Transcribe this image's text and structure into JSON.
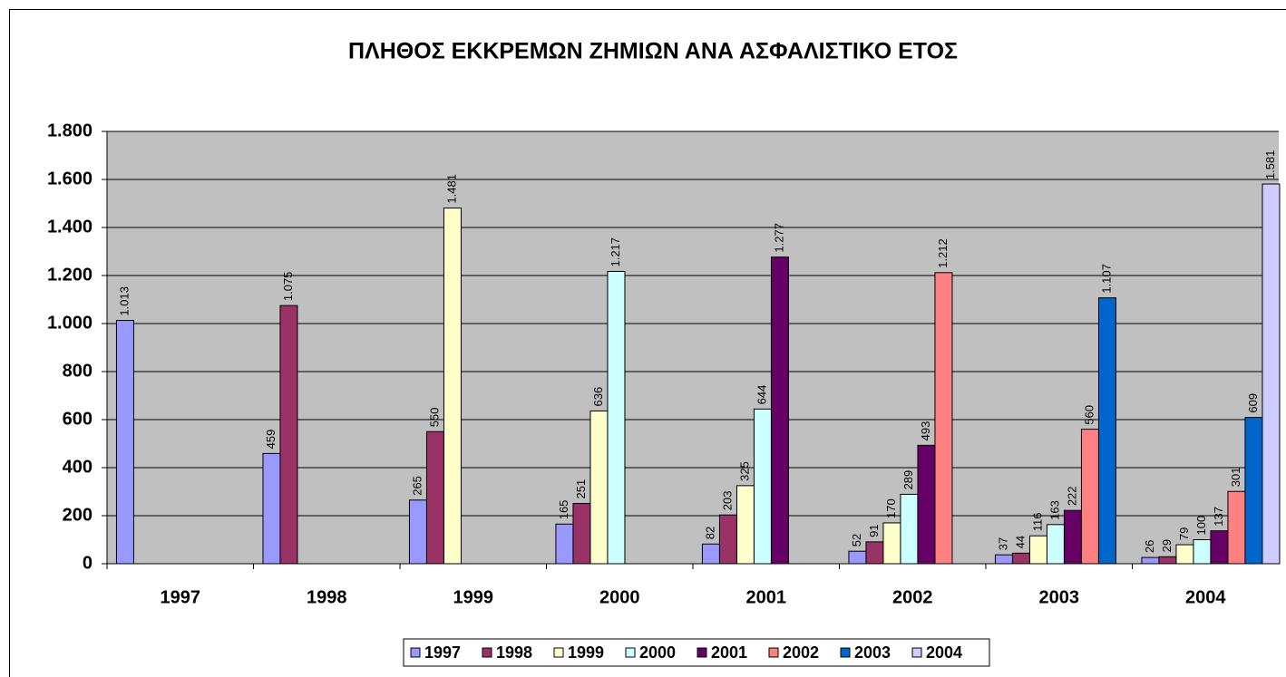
{
  "chart_data": {
    "type": "bar",
    "title": "ΠΛΗΘΟΣ ΕΚΚΡΕΜΩΝ ΖΗΜΙΩΝ ΑΝΑ ΑΣΦΑΛΙΣΤΙΚΟ ΕΤΟΣ",
    "categories": [
      "1997",
      "1998",
      "1999",
      "2000",
      "2001",
      "2002",
      "2003",
      "2004"
    ],
    "series": [
      {
        "name": "1997",
        "color": "#9999ff",
        "values": [
          1013,
          459,
          265,
          165,
          82,
          52,
          37,
          26
        ],
        "value_labels": [
          "1.013",
          "459",
          "265",
          "165",
          "82",
          "52",
          "37",
          "26"
        ]
      },
      {
        "name": "1998",
        "color": "#993366",
        "values": [
          null,
          1075,
          550,
          251,
          203,
          91,
          44,
          29
        ],
        "value_labels": [
          null,
          "1.075",
          "550",
          "251",
          "203",
          "91",
          "44",
          "29"
        ]
      },
      {
        "name": "1999",
        "color": "#ffffcc",
        "values": [
          null,
          null,
          1481,
          636,
          325,
          170,
          116,
          79
        ],
        "value_labels": [
          null,
          null,
          "1.481",
          "636",
          "325",
          "170",
          "116",
          "79"
        ]
      },
      {
        "name": "2000",
        "color": "#ccffff",
        "values": [
          null,
          null,
          null,
          1217,
          644,
          289,
          163,
          100
        ],
        "value_labels": [
          null,
          null,
          null,
          "1.217",
          "644",
          "289",
          "163",
          "100"
        ]
      },
      {
        "name": "2001",
        "color": "#660066",
        "values": [
          null,
          null,
          null,
          null,
          1277,
          493,
          222,
          137
        ],
        "value_labels": [
          null,
          null,
          null,
          null,
          "1.277",
          "493",
          "222",
          "137"
        ]
      },
      {
        "name": "2002",
        "color": "#ff8080",
        "values": [
          null,
          null,
          null,
          null,
          null,
          1212,
          560,
          301
        ],
        "value_labels": [
          null,
          null,
          null,
          null,
          null,
          "1.212",
          "560",
          "301"
        ]
      },
      {
        "name": "2003",
        "color": "#0066cc",
        "values": [
          null,
          null,
          null,
          null,
          null,
          null,
          1107,
          609
        ],
        "value_labels": [
          null,
          null,
          null,
          null,
          null,
          null,
          "1.107",
          "609"
        ]
      },
      {
        "name": "2004",
        "color": "#ccccff",
        "values": [
          null,
          null,
          null,
          null,
          null,
          null,
          null,
          1581
        ],
        "value_labels": [
          null,
          null,
          null,
          null,
          null,
          null,
          null,
          "1.581"
        ]
      }
    ],
    "ylim": [
      0,
      1800
    ],
    "yticks": [
      0,
      200,
      400,
      600,
      800,
      {
        "value": 1000,
        "label": "1.000"
      },
      {
        "value": 1200,
        "label": "1.200"
      },
      {
        "value": 1400,
        "label": "1.400"
      },
      {
        "value": 1600,
        "label": "1.600"
      },
      {
        "value": 1800,
        "label": "1.800"
      }
    ],
    "grid": true,
    "plot_background": "#c0c0c0",
    "legend": "bottom"
  }
}
